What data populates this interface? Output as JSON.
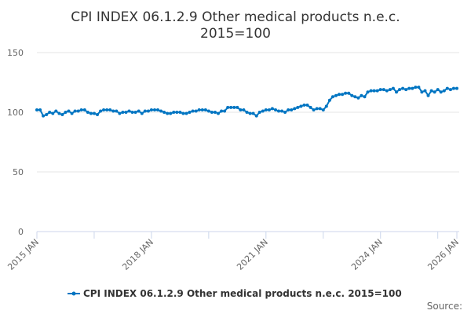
{
  "chart_data": {
    "type": "line",
    "title": "CPI INDEX 06.1.2.9 Other medical products n.e.c.",
    "subtitle": "2015=100",
    "xlabel": "",
    "ylabel": "",
    "ylim": [
      0,
      150
    ],
    "yticks": [
      "0",
      "50",
      "100",
      "150"
    ],
    "xticks": [
      "2015 JAN",
      "2018 JAN",
      "2021 JAN",
      "2024 JAN",
      "2026 JAN"
    ],
    "x_start": "2015 JAN",
    "x_end": "2026 JAN",
    "frequency": "monthly",
    "grid": true,
    "legend_position": "bottom",
    "color": "#0075c2",
    "credit": "Source:",
    "series": [
      {
        "name": "CPI INDEX 06.1.2.9 Other medical products n.e.c. 2015=100",
        "values": [
          102,
          102,
          97,
          98,
          100,
          99,
          101,
          99,
          98,
          100,
          101,
          99,
          101,
          101,
          102,
          102,
          100,
          99,
          99,
          98,
          101,
          102,
          102,
          102,
          101,
          101,
          99,
          100,
          100,
          101,
          100,
          100,
          101,
          99,
          101,
          101,
          102,
          102,
          102,
          101,
          100,
          99,
          99,
          100,
          100,
          100,
          99,
          99,
          100,
          101,
          101,
          102,
          102,
          102,
          101,
          100,
          100,
          99,
          101,
          101,
          104,
          104,
          104,
          104,
          102,
          102,
          100,
          99,
          99,
          97,
          100,
          101,
          102,
          102,
          103,
          102,
          101,
          101,
          100,
          102,
          102,
          103,
          104,
          105,
          106,
          106,
          104,
          102,
          103,
          103,
          102,
          105,
          110,
          113,
          114,
          115,
          115,
          116,
          116,
          114,
          113,
          112,
          114,
          113,
          117,
          118,
          118,
          118,
          119,
          119,
          118,
          119,
          120,
          117,
          119,
          120,
          119,
          120,
          120,
          121,
          121,
          117,
          118,
          114,
          118,
          117,
          119,
          117,
          118,
          120,
          119,
          120,
          120
        ]
      }
    ]
  }
}
